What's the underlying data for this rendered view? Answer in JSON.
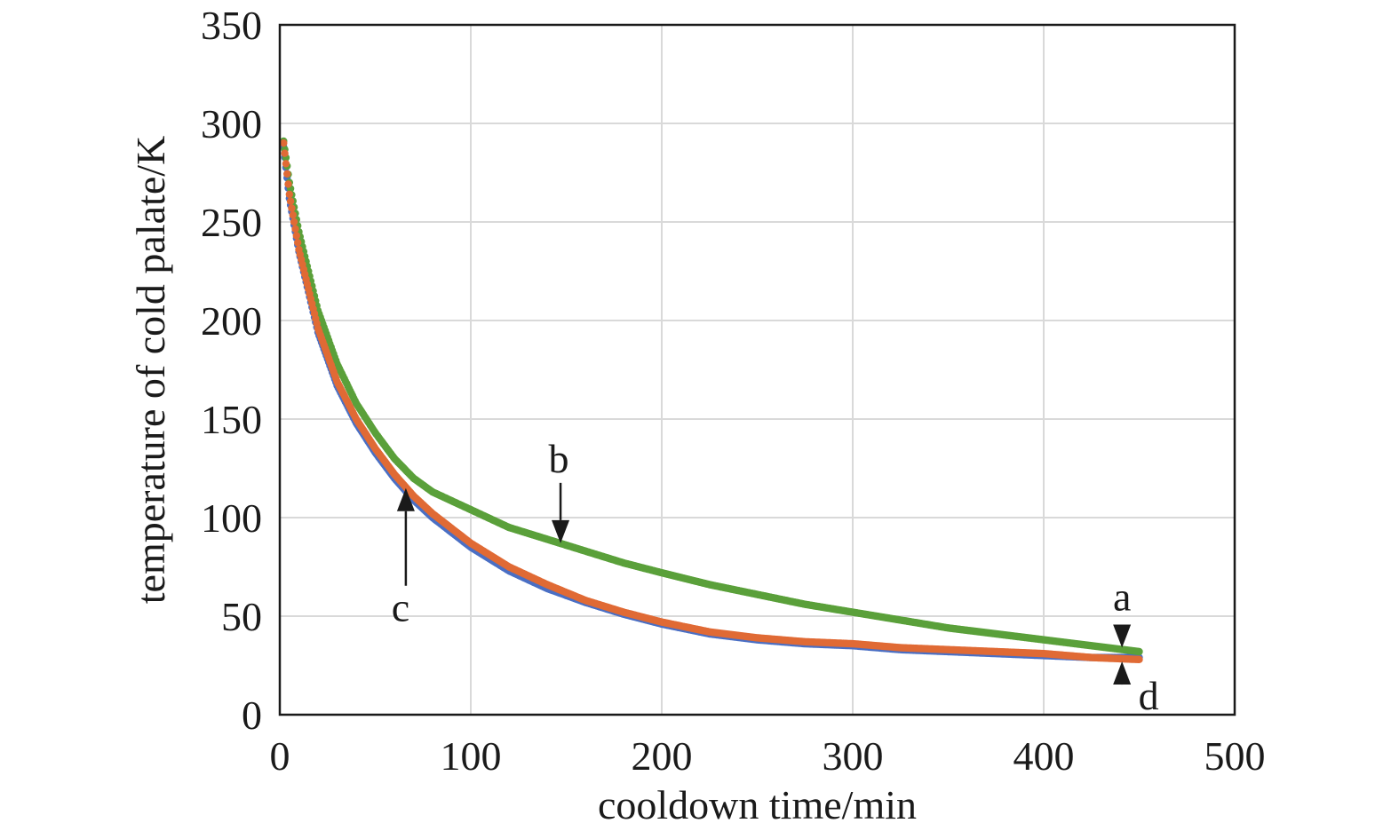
{
  "chart_data": {
    "type": "scatter",
    "title": "",
    "xlabel": "cooldown time/min",
    "ylabel": "temperature of cold palate/K",
    "xlim": [
      0,
      500
    ],
    "ylim": [
      0,
      350
    ],
    "x_ticks": [
      "0",
      "100",
      "200",
      "300",
      "400",
      "500"
    ],
    "y_ticks": [
      "0",
      "50",
      "100",
      "150",
      "200",
      "250",
      "300",
      "350"
    ],
    "grid": true,
    "legend": "none",
    "series": [
      {
        "color": "#4a6fc4",
        "x": [
          2,
          5,
          10,
          20,
          30,
          40,
          50,
          60,
          70,
          80,
          100,
          120,
          140,
          160,
          180,
          200,
          225,
          250,
          275,
          300,
          325,
          350,
          375,
          400,
          425,
          450
        ],
        "y": [
          288,
          262,
          235,
          194,
          167,
          148,
          133,
          120,
          109,
          100,
          85,
          73,
          64,
          57,
          51,
          46,
          41,
          38,
          36,
          35,
          33,
          32,
          31,
          30,
          29,
          29
        ]
      },
      {
        "color": "#5aa03a",
        "x": [
          2,
          5,
          10,
          20,
          30,
          40,
          50,
          60,
          70,
          80,
          100,
          120,
          140,
          150,
          160,
          180,
          200,
          225,
          250,
          275,
          300,
          325,
          350,
          375,
          400,
          425,
          450
        ],
        "y": [
          291,
          270,
          245,
          205,
          178,
          158,
          143,
          130,
          120,
          113,
          104,
          95,
          89,
          86,
          83,
          77,
          72,
          66,
          61,
          56,
          52,
          48,
          44,
          41,
          38,
          35,
          32
        ]
      },
      {
        "color": "#e06a35",
        "x": [
          2,
          5,
          10,
          20,
          30,
          40,
          50,
          60,
          70,
          80,
          100,
          120,
          140,
          160,
          180,
          200,
          225,
          250,
          275,
          300,
          325,
          350,
          375,
          400,
          425,
          450
        ],
        "y": [
          290,
          264,
          236,
          196,
          169,
          150,
          135,
          122,
          111,
          102,
          87,
          75,
          66,
          58,
          52,
          47,
          42,
          39,
          37,
          36,
          34,
          33,
          32,
          31,
          29,
          28
        ]
      }
    ],
    "annotations": [
      {
        "label": "a",
        "x": 441,
        "y": 34,
        "direction": "down"
      },
      {
        "label": "b",
        "x": 147,
        "y": 87,
        "direction": "down"
      },
      {
        "label": "c",
        "x": 66,
        "y": 115,
        "direction": "up"
      },
      {
        "label": "d",
        "x": 441,
        "y": 27,
        "direction": "up"
      }
    ]
  }
}
